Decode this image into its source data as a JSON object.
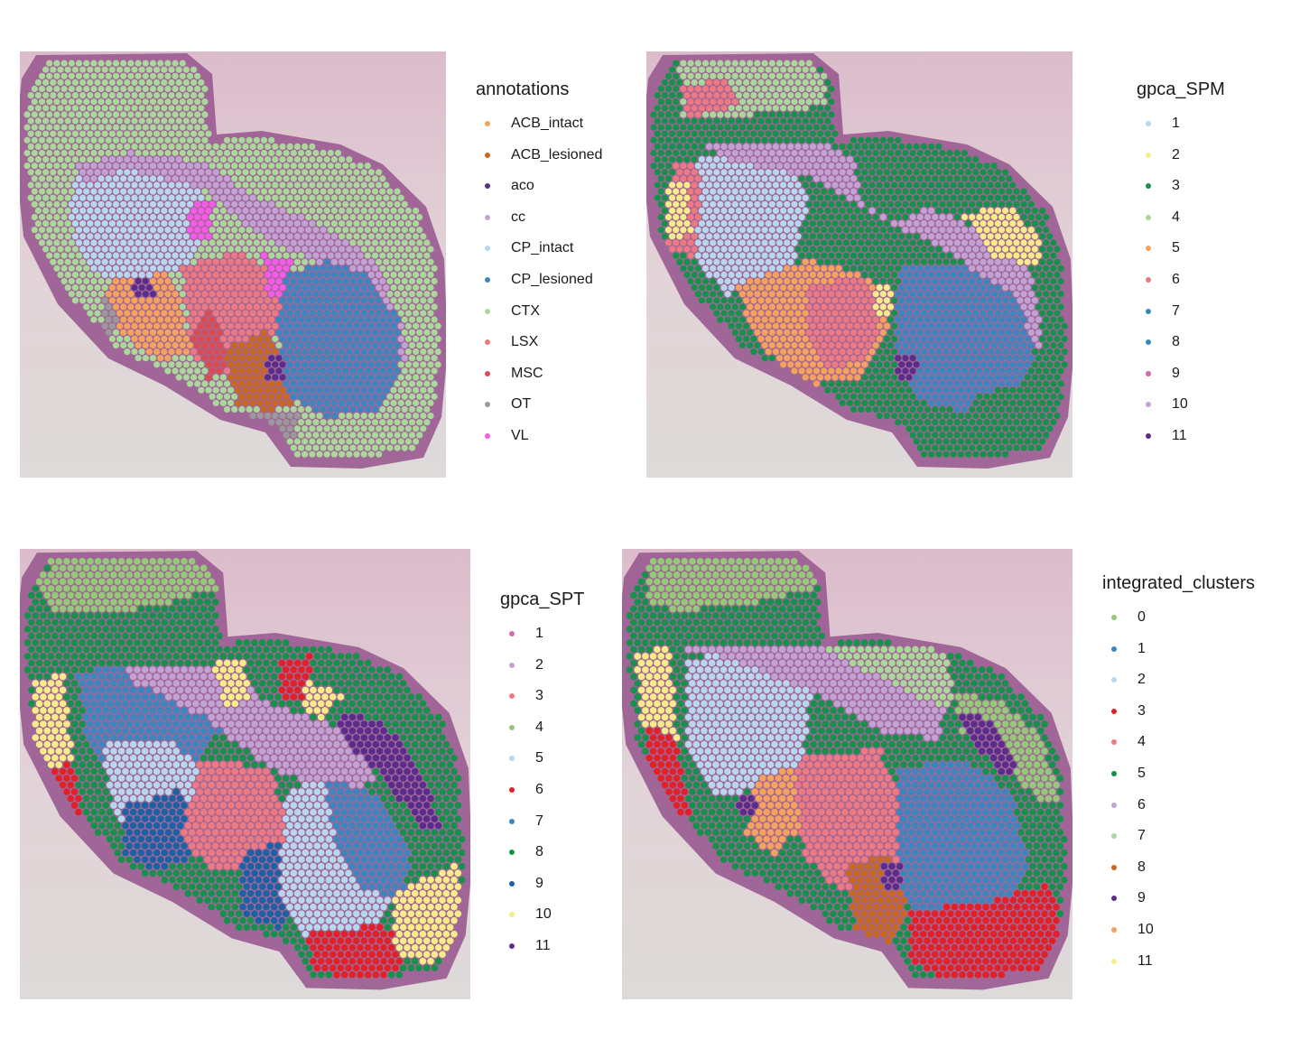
{
  "chart_data": [
    {
      "type": "scatter",
      "panel": "top-left",
      "legend": {
        "title": "annotations",
        "placement": "right",
        "entries": [
          {
            "label": "ACB_intact",
            "color": "#f5a25c"
          },
          {
            "label": "ACB_lesioned",
            "color": "#c9691f"
          },
          {
            "label": "aco",
            "color": "#5a2d8c"
          },
          {
            "label": "cc",
            "color": "#c1a3d3"
          },
          {
            "label": "CP_intact",
            "color": "#b7d7ec"
          },
          {
            "label": "CP_lesioned",
            "color": "#3b86bf"
          },
          {
            "label": "CTX",
            "color": "#a9d89a"
          },
          {
            "label": "LSX",
            "color": "#ec7a80"
          },
          {
            "label": "MSC",
            "color": "#dc4b4e"
          },
          {
            "label": "OT",
            "color": "#9a9a9a"
          },
          {
            "label": "VL",
            "color": "#f759e9"
          }
        ]
      },
      "grid": false,
      "background": "tissue-histology-image"
    },
    {
      "type": "scatter",
      "panel": "top-right",
      "legend": {
        "title": "gpca_SPM",
        "placement": "right",
        "entries": [
          {
            "label": "1",
            "color": "#b7d7ec"
          },
          {
            "label": "2",
            "color": "#f7ec88"
          },
          {
            "label": "3",
            "color": "#16914c"
          },
          {
            "label": "4",
            "color": "#a9d89a"
          },
          {
            "label": "5",
            "color": "#f5a25c"
          },
          {
            "label": "6",
            "color": "#ec7a80"
          },
          {
            "label": "7",
            "color": "#3b86bf"
          },
          {
            "label": "8",
            "color": "#3b86bf"
          },
          {
            "label": "9",
            "color": "#d46aac"
          },
          {
            "label": "10",
            "color": "#c1a3d3"
          },
          {
            "label": "11",
            "color": "#5a2d8c"
          }
        ]
      },
      "grid": false,
      "background": "tissue-histology-image"
    },
    {
      "type": "scatter",
      "panel": "bottom-left",
      "legend": {
        "title": "gpca_SPT",
        "placement": "right",
        "entries": [
          {
            "label": "1",
            "color": "#d46aac"
          },
          {
            "label": "2",
            "color": "#c1a3d3"
          },
          {
            "label": "3",
            "color": "#ec7a80"
          },
          {
            "label": "4",
            "color": "#94c978"
          },
          {
            "label": "5",
            "color": "#b7d7ec"
          },
          {
            "label": "6",
            "color": "#e22127"
          },
          {
            "label": "7",
            "color": "#3b86bf"
          },
          {
            "label": "8",
            "color": "#16914c"
          },
          {
            "label": "9",
            "color": "#1a62a3"
          },
          {
            "label": "10",
            "color": "#f7ec88"
          },
          {
            "label": "11",
            "color": "#5a2d8c"
          }
        ]
      },
      "grid": false,
      "background": "tissue-histology-image"
    },
    {
      "type": "scatter",
      "panel": "bottom-right",
      "legend": {
        "title": "integrated_clusters",
        "placement": "right",
        "entries": [
          {
            "label": "0",
            "color": "#94c978"
          },
          {
            "label": "1",
            "color": "#3b86bf"
          },
          {
            "label": "2",
            "color": "#b7d7ec"
          },
          {
            "label": "3",
            "color": "#e22127"
          },
          {
            "label": "4",
            "color": "#ec7a80"
          },
          {
            "label": "5",
            "color": "#16914c"
          },
          {
            "label": "6",
            "color": "#c1a3d3"
          },
          {
            "label": "7",
            "color": "#a9d89a"
          },
          {
            "label": "8",
            "color": "#c9691f"
          },
          {
            "label": "9",
            "color": "#5a2d8c"
          },
          {
            "label": "10",
            "color": "#f5a25c"
          },
          {
            "label": "11",
            "color": "#f7ec88"
          }
        ]
      },
      "grid": false,
      "background": "tissue-histology-image"
    }
  ]
}
